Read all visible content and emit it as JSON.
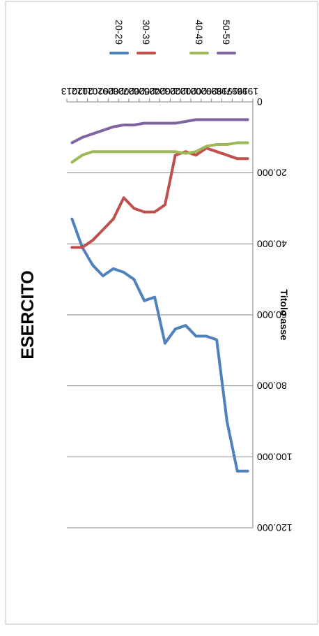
{
  "chart_data": {
    "type": "line",
    "title": "ESERCITO",
    "ylabel": "Titolo asse",
    "xlabel": "",
    "x": [
      "1996",
      "1997",
      "1998",
      "1999",
      "2000",
      "2001",
      "2002",
      "2003",
      "2004",
      "2005",
      "2006",
      "2007",
      "2008",
      "2009",
      "2010",
      "2011",
      "2012",
      "2013"
    ],
    "ylim": [
      0,
      120000
    ],
    "yticks": [
      0,
      20000,
      40000,
      60000,
      80000,
      100000,
      120000
    ],
    "ytick_labels": [
      "0",
      "20.000",
      "40.000",
      "60.000",
      "80.000",
      "100.000",
      "120.000"
    ],
    "grid": true,
    "legend_position": "top",
    "orientation": "rotated-180",
    "series": [
      {
        "name": "20-29",
        "color": "#4F81BD",
        "values": [
          104000,
          104000,
          90000,
          67000,
          66000,
          66000,
          63000,
          64000,
          68000,
          55000,
          56000,
          50000,
          48000,
          47000,
          49000,
          46000,
          41000,
          33000
        ]
      },
      {
        "name": "30-39",
        "color": "#C0504D",
        "values": [
          16000,
          16000,
          15000,
          14000,
          13000,
          15000,
          14000,
          15000,
          29000,
          31000,
          31000,
          30000,
          27000,
          33000,
          36000,
          39000,
          41000,
          41000
        ]
      },
      {
        "name": "40-49",
        "color": "#9BBB59",
        "values": [
          11500,
          11500,
          12000,
          12000,
          12500,
          14000,
          14500,
          14000,
          14000,
          14000,
          14000,
          14000,
          14000,
          14000,
          14000,
          14000,
          15000,
          17000
        ]
      },
      {
        "name": "50-59",
        "color": "#8064A2",
        "values": [
          5000,
          5000,
          5000,
          5000,
          5000,
          5000,
          5500,
          6000,
          6000,
          6000,
          6000,
          6500,
          6500,
          7000,
          8000,
          9000,
          10000,
          11500
        ]
      }
    ]
  }
}
